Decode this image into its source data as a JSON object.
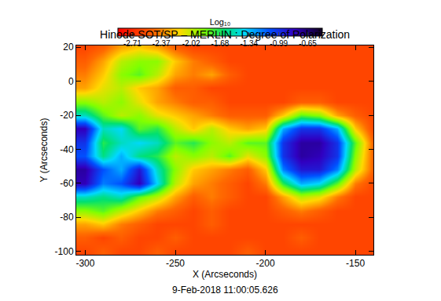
{
  "chart_data": {
    "type": "heatmap",
    "title": "Hinode SOT/SP – MERLIN : Degree of Polarization",
    "x_label": "X (Arcseconds)",
    "y_label": "Y (Arcseconds)",
    "annotations": [
      "9-Feb-2018 11:00:05.626"
    ],
    "x": [
      -300,
      -290,
      -280,
      -270,
      -260,
      -250,
      -240,
      -230,
      -220,
      -210,
      -200,
      -190,
      -180,
      -170,
      -160,
      -150,
      -140
    ],
    "y": [
      -100,
      -92,
      -84,
      -76,
      -68,
      -60,
      -52,
      -44,
      -36,
      -28,
      -20,
      -12,
      -4,
      4,
      12,
      20
    ],
    "z": [
      [
        -2.6,
        -2.5,
        -2.6,
        -2.6,
        -2.5,
        -2.6,
        -2.6,
        -2.6,
        -2.6,
        -2.5,
        -2.6,
        -2.6,
        -2.6,
        -2.6,
        -2.6,
        -2.6,
        -2.6
      ],
      [
        -2.5,
        -2.6,
        -2.5,
        -2.6,
        -2.6,
        -2.5,
        -2.6,
        -2.6,
        -2.6,
        -2.6,
        -2.6,
        -2.6,
        -2.5,
        -2.6,
        -2.6,
        -2.6,
        -2.6
      ],
      [
        -2.3,
        -2.2,
        -2.4,
        -2.5,
        -2.6,
        -2.6,
        -2.6,
        -2.5,
        -2.6,
        -2.6,
        -2.6,
        -2.6,
        -2.6,
        -2.6,
        -2.6,
        -2.6,
        -2.6
      ],
      [
        -1.9,
        -1.8,
        -2.0,
        -2.2,
        -2.4,
        -2.5,
        -2.6,
        -2.5,
        -2.6,
        -2.6,
        -2.6,
        -2.5,
        -2.4,
        -2.5,
        -2.6,
        -2.6,
        -2.6
      ],
      [
        -1.5,
        -1.6,
        -1.5,
        -1.8,
        -2.0,
        -2.3,
        -2.5,
        -2.4,
        -2.5,
        -2.6,
        -2.6,
        -2.3,
        -2.0,
        -2.1,
        -2.4,
        -2.6,
        -2.6
      ],
      [
        -0.8,
        -1.2,
        -1.1,
        -0.8,
        -1.4,
        -2.0,
        -2.3,
        -2.4,
        -2.5,
        -2.6,
        -2.4,
        -1.7,
        -1.3,
        -1.4,
        -1.8,
        -2.4,
        -2.6
      ],
      [
        -0.75,
        -1.1,
        -1.3,
        -0.9,
        -1.5,
        -1.9,
        -2.2,
        -2.3,
        -2.4,
        -2.5,
        -2.2,
        -1.2,
        -0.9,
        -0.9,
        -1.2,
        -2.0,
        -2.5
      ],
      [
        -1.1,
        -1.6,
        -1.3,
        -1.6,
        -1.7,
        -2.0,
        -1.9,
        -2.0,
        -1.8,
        -2.1,
        -1.9,
        -1.0,
        -0.75,
        -0.8,
        -1.0,
        -1.9,
        -2.5
      ],
      [
        -1.0,
        -1.7,
        -1.5,
        -1.4,
        -1.5,
        -1.8,
        -1.7,
        -1.9,
        -2.0,
        -1.8,
        -1.8,
        -1.0,
        -0.75,
        -0.75,
        -1.0,
        -1.8,
        -2.5
      ],
      [
        -0.8,
        -1.5,
        -1.4,
        -1.8,
        -1.7,
        -2.0,
        -2.2,
        -2.0,
        -2.2,
        -2.3,
        -2.2,
        -1.3,
        -1.0,
        -1.0,
        -1.3,
        -2.2,
        -2.6
      ],
      [
        -1.5,
        -1.8,
        -2.0,
        -1.9,
        -2.1,
        -2.2,
        -2.3,
        -2.4,
        -2.5,
        -2.5,
        -2.5,
        -2.2,
        -1.8,
        -1.9,
        -2.3,
        -2.5,
        -2.6
      ],
      [
        -1.9,
        -2.0,
        -1.9,
        -2.1,
        -2.3,
        -2.4,
        -2.5,
        -2.5,
        -2.6,
        -2.6,
        -2.6,
        -2.6,
        -2.5,
        -2.5,
        -2.6,
        -2.6,
        -2.6
      ],
      [
        -2.3,
        -2.1,
        -2.0,
        -2.2,
        -2.3,
        -2.5,
        -2.5,
        -2.6,
        -2.6,
        -2.6,
        -2.6,
        -2.6,
        -2.6,
        -2.6,
        -2.6,
        -2.6,
        -2.6
      ],
      [
        -2.4,
        -2.2,
        -1.9,
        -1.8,
        -2.0,
        -2.3,
        -2.4,
        -2.3,
        -2.5,
        -2.6,
        -2.6,
        -2.6,
        -2.6,
        -2.6,
        -2.6,
        -2.6,
        -2.6
      ],
      [
        -2.5,
        -2.3,
        -2.0,
        -1.9,
        -1.9,
        -2.2,
        -2.4,
        -2.5,
        -2.6,
        -2.6,
        -2.6,
        -2.6,
        -2.6,
        -2.6,
        -2.6,
        -2.6,
        -2.6
      ],
      [
        -2.6,
        -2.5,
        -2.3,
        -2.2,
        -2.3,
        -2.5,
        -2.6,
        -2.6,
        -2.6,
        -2.6,
        -2.6,
        -2.6,
        -2.6,
        -2.6,
        -2.6,
        -2.6,
        -2.6
      ]
    ],
    "xlim": [
      -305,
      -140
    ],
    "ylim": [
      -102,
      21
    ],
    "xticks": [
      -300,
      -250,
      -200,
      -150
    ],
    "yticks": [
      -100,
      -80,
      -60,
      -40,
      -20,
      0,
      20
    ],
    "grid": false,
    "colorbar": {
      "title": "Log₁₀",
      "range": [
        -2.88,
        -0.48
      ],
      "ticks": [
        -2.71,
        -2.37,
        -2.02,
        -1.68,
        -1.34,
        -0.99,
        -0.65
      ]
    }
  }
}
